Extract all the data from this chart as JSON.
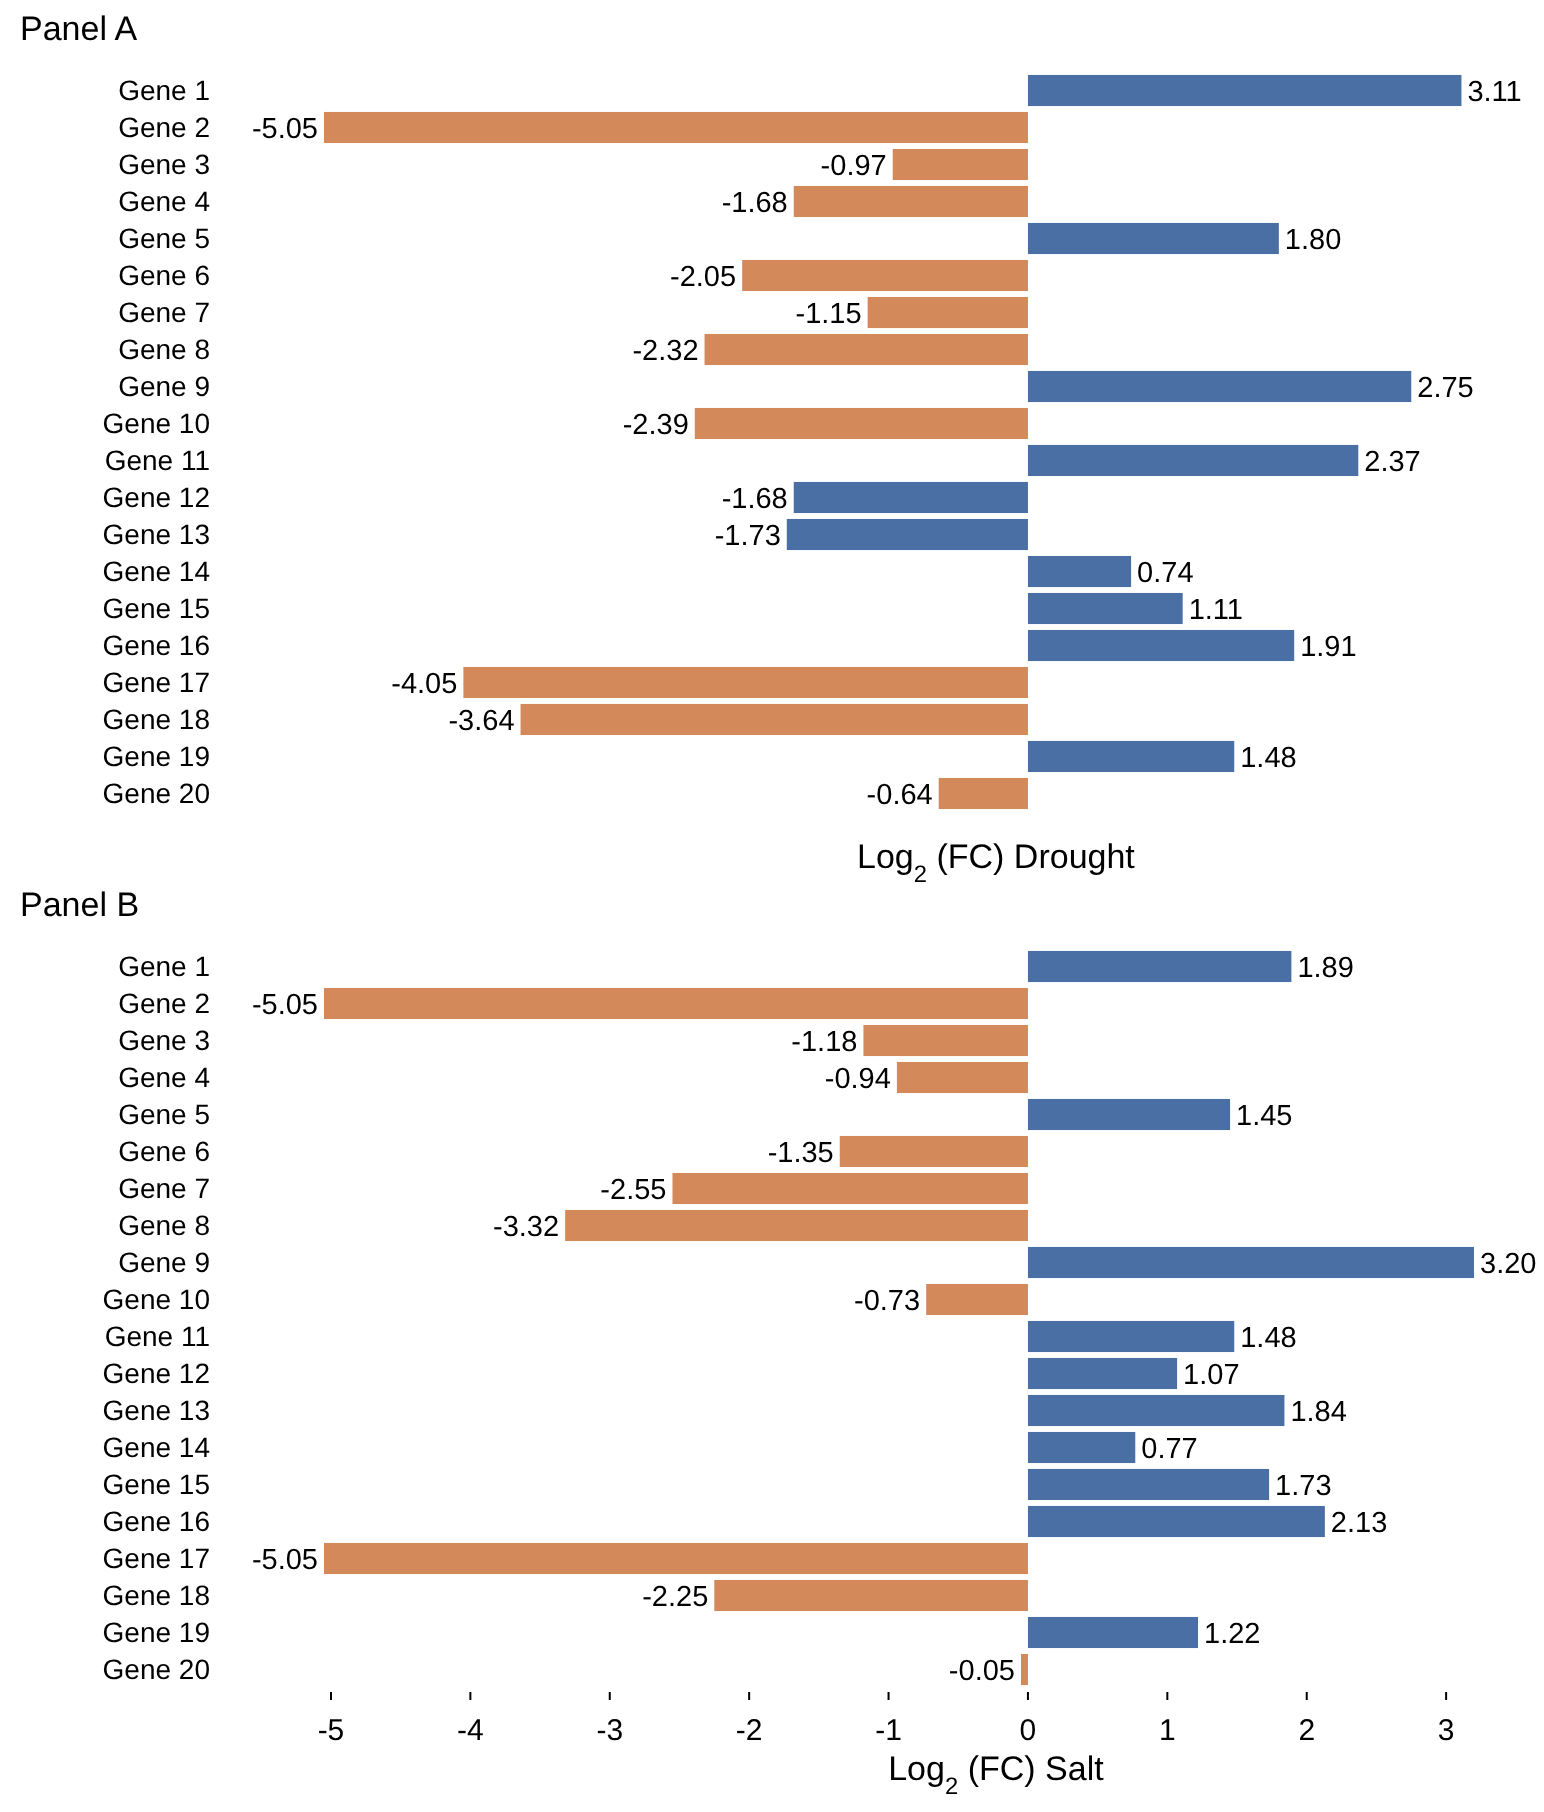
{
  "chart_data": [
    {
      "type": "bar",
      "orientation": "horizontal",
      "title": "Panel A",
      "xlabel": "Log$_{2}$ (FC) Drought",
      "categories": [
        "Gene 1",
        "Gene 2",
        "Gene 3",
        "Gene 4",
        "Gene 5",
        "Gene 6",
        "Gene 7",
        "Gene 8",
        "Gene 9",
        "Gene 10",
        "Gene 11",
        "Gene 12",
        "Gene 13",
        "Gene 14",
        "Gene 15",
        "Gene 16",
        "Gene 17",
        "Gene 18",
        "Gene 19",
        "Gene 20"
      ],
      "values": [
        3.11,
        -5.05,
        -0.97,
        -1.68,
        1.8,
        -2.05,
        -1.15,
        -2.32,
        2.75,
        -2.39,
        2.37,
        -1.68,
        -1.73,
        0.74,
        1.11,
        1.91,
        -4.05,
        -3.64,
        1.48,
        -0.64
      ],
      "value_labels": [
        "3.11",
        "-5.05",
        "-0.97",
        "-1.68",
        "1.80",
        "-2.05",
        "-1.15",
        "-2.32",
        "2.75",
        "-2.39",
        "2.37",
        "-1.68",
        "-1.73",
        "0.74",
        "1.11",
        "1.91",
        "-4.05",
        "-3.64",
        "1.48",
        "-0.64"
      ],
      "colors": [
        "#4a6fa5",
        "#d4895a",
        "#d4895a",
        "#d4895a",
        "#4a6fa5",
        "#d4895a",
        "#d4895a",
        "#d4895a",
        "#4a6fa5",
        "#d4895a",
        "#4a6fa5",
        "#4a6fa5",
        "#4a6fa5",
        "#4a6fa5",
        "#4a6fa5",
        "#4a6fa5",
        "#d4895a",
        "#d4895a",
        "#4a6fa5",
        "#d4895a"
      ],
      "tick_labels": "y"
    },
    {
      "type": "bar",
      "orientation": "horizontal",
      "title": "Panel B",
      "xlabel": "Log$_{2}$ (FC) Salt",
      "categories": [
        "Gene 1",
        "Gene 2",
        "Gene 3",
        "Gene 4",
        "Gene 5",
        "Gene 6",
        "Gene 7",
        "Gene 8",
        "Gene 9",
        "Gene 10",
        "Gene 11",
        "Gene 12",
        "Gene 13",
        "Gene 14",
        "Gene 15",
        "Gene 16",
        "Gene 17",
        "Gene 18",
        "Gene 19",
        "Gene 20"
      ],
      "values": [
        1.89,
        -5.05,
        -1.18,
        -0.94,
        1.45,
        -1.35,
        -2.55,
        -3.32,
        3.2,
        -0.73,
        1.48,
        1.07,
        1.84,
        0.77,
        1.73,
        2.13,
        -5.05,
        -2.25,
        1.22,
        -0.05
      ],
      "value_labels": [
        "1.89",
        "-5.05",
        "-1.18",
        "-0.94",
        "1.45",
        "-1.35",
        "-2.55",
        "-3.32",
        "3.20",
        "-0.73",
        "1.48",
        "1.07",
        "1.84",
        "0.77",
        "1.73",
        "2.13",
        "-5.05",
        "-2.25",
        "1.22",
        "-0.05"
      ],
      "colors": [
        "#4a6fa5",
        "#d4895a",
        "#d4895a",
        "#d4895a",
        "#4a6fa5",
        "#d4895a",
        "#d4895a",
        "#d4895a",
        "#4a6fa5",
        "#d4895a",
        "#4a6fa5",
        "#4a6fa5",
        "#4a6fa5",
        "#4a6fa5",
        "#4a6fa5",
        "#4a6fa5",
        "#d4895a",
        "#d4895a",
        "#4a6fa5",
        "#d4895a"
      ],
      "xlim": [
        -5.05,
        3.2
      ],
      "xticks": [
        -5,
        -4,
        -3,
        -2,
        -1,
        0,
        1,
        2,
        3
      ]
    }
  ]
}
